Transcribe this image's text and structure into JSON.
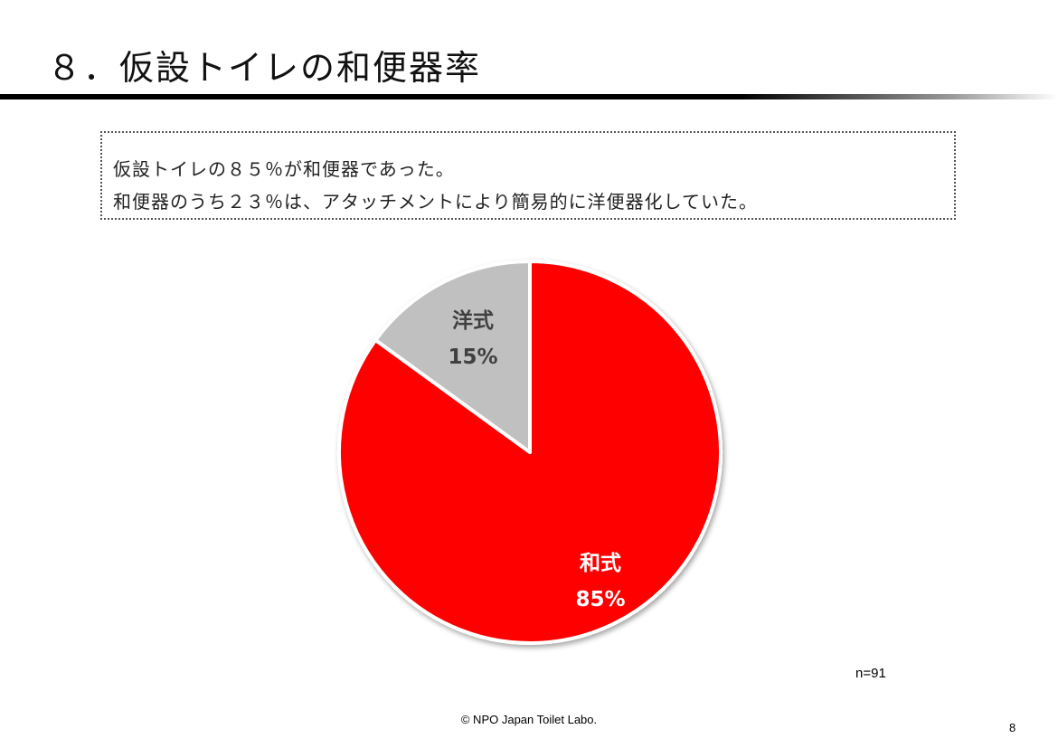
{
  "slide": {
    "title": "８．仮設トイレの和便器率",
    "callout": {
      "line1": "仮設トイレの８５％が和便器であった。",
      "line2": "和便器のうち２３％は、アタッチメントにより簡易的に洋便器化していた。"
    },
    "sample_size": "n=91",
    "footer": "©  NPO Japan Toilet Labo.",
    "page_number": "8"
  },
  "chart_data": {
    "type": "pie",
    "title": "",
    "slices": [
      {
        "name": "和式",
        "value": 85,
        "label": "85%",
        "color": "#ff0000",
        "label_color": "#ffffff"
      },
      {
        "name": "洋式",
        "value": 15,
        "label": "15%",
        "color": "#c0c0c0",
        "label_color": "#404040"
      }
    ],
    "start_angle_deg": 0,
    "direction": "clockwise",
    "legend": "none"
  }
}
